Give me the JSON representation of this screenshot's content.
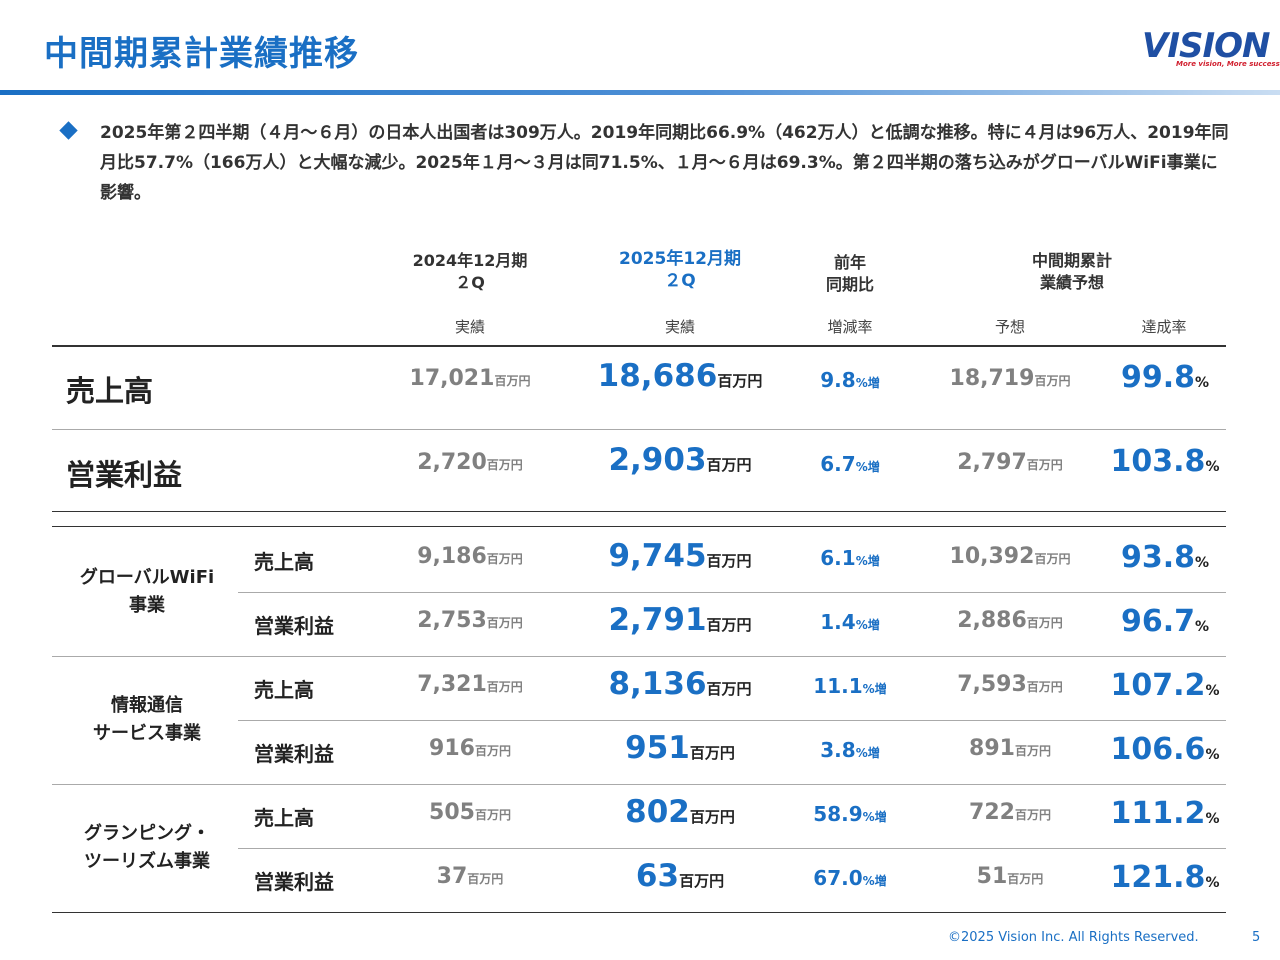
{
  "title": "中間期累計業績推移",
  "logo": {
    "text": "VISION",
    "slogan": "More vision, More success."
  },
  "summary": "2025年第２四半期（４月～６月）の日本人出国者は309万人。2019年同期比66.9%（462万人）と低調な推移。特に４月は96万人、2019年同月比57.7%（166万人）と大幅な減少。2025年１月～３月は同71.5%、１月～６月は69.3%。第２四半期の落ち込みがグローバルWiFi事業に影響。",
  "headers": {
    "prev": "2024年12月期\n２Q",
    "curr": "2025年12月期\n２Q",
    "yoy": "前年\n同期比",
    "forecast": "中間期累計\n業績予想"
  },
  "subheaders": {
    "prev": "実績",
    "curr": "実績",
    "yoy": "増減率",
    "forecast": "予想",
    "achievement": "達成率"
  },
  "units": {
    "million_yen": "百万円",
    "percent_increase": "%増",
    "percent": "%"
  },
  "totals": [
    {
      "label": "売上高",
      "prev": "17,021",
      "curr": "18,686",
      "yoy": "9.8",
      "forecast": "18,719",
      "rate": "99.8"
    },
    {
      "label": "営業利益",
      "prev": "2,720",
      "curr": "2,903",
      "yoy": "6.7",
      "forecast": "2,797",
      "rate": "103.8"
    }
  ],
  "segments": [
    {
      "name": "グローバルWiFi\n事業",
      "rows": [
        {
          "label": "売上高",
          "prev": "9,186",
          "curr": "9,745",
          "yoy": "6.1",
          "forecast": "10,392",
          "rate": "93.8"
        },
        {
          "label": "営業利益",
          "prev": "2,753",
          "curr": "2,791",
          "yoy": "1.4",
          "forecast": "2,886",
          "rate": "96.7"
        }
      ]
    },
    {
      "name": "情報通信\nサービス事業",
      "rows": [
        {
          "label": "売上高",
          "prev": "7,321",
          "curr": "8,136",
          "yoy": "11.1",
          "forecast": "7,593",
          "rate": "107.2"
        },
        {
          "label": "営業利益",
          "prev": "916",
          "curr": "951",
          "yoy": "3.8",
          "forecast": "891",
          "rate": "106.6"
        }
      ]
    },
    {
      "name": "グランピング・\nツーリズム事業",
      "rows": [
        {
          "label": "売上高",
          "prev": "505",
          "curr": "802",
          "yoy": "58.9",
          "forecast": "722",
          "rate": "111.2"
        },
        {
          "label": "営業利益",
          "prev": "37",
          "curr": "63",
          "yoy": "67.0",
          "forecast": "51",
          "rate": "121.8"
        }
      ]
    }
  ],
  "footer": "©2025 Vision Inc. All Rights Reserved.",
  "page_number": "5",
  "colors": {
    "accent": "#1a6fc4",
    "muted": "#808080",
    "logo_red": "#d1202f",
    "logo_blue": "#1f4fa3"
  }
}
